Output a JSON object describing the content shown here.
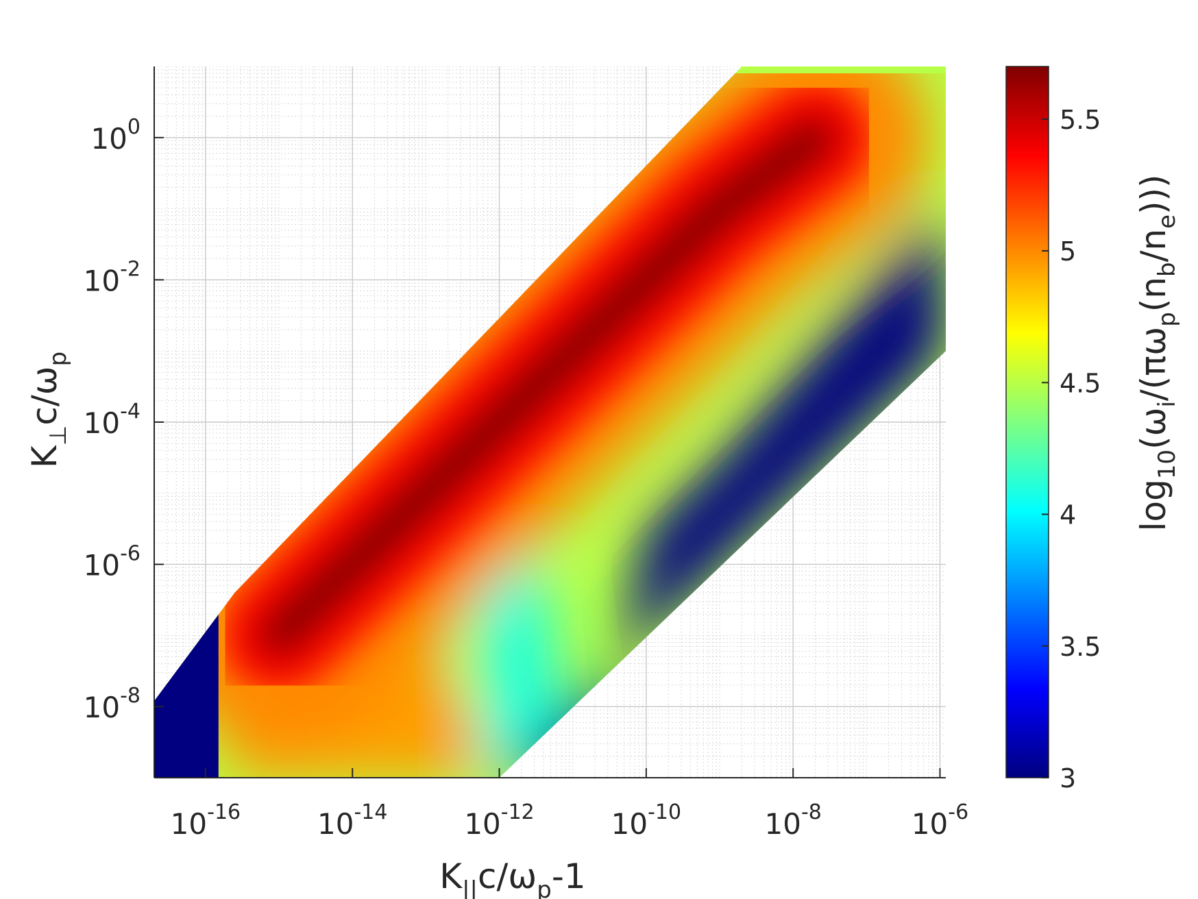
{
  "chart_data": {
    "type": "heatmap",
    "title": "",
    "xlabel": "K",
    "xlabel_sub": "||",
    "xlabel_rest_1": "c/ω",
    "xlabel_rest_sub": "p",
    "xlabel_rest_2": "-1",
    "ylabel": "K",
    "ylabel_sub": "⊥",
    "ylabel_rest_1": "c/ω",
    "ylabel_rest_sub": "p",
    "colorbar_label": {
      "a": "log",
      "a_sub": "10",
      "b": "(ω",
      "b_sub": "i",
      "c": "/(πω",
      "c_sub": "p",
      "d": "(n",
      "d_sub": "b",
      "e": "/n",
      "e_sub": "e",
      "f": ")))"
    },
    "x_scale": "log",
    "y_scale": "log",
    "xlim": [
      2e-17,
      1.2e-06
    ],
    "ylim": [
      1e-09,
      10
    ],
    "x_ticks": [
      {
        "value": 1e-16,
        "base": "10",
        "exp": "-16"
      },
      {
        "value": 1e-14,
        "base": "10",
        "exp": "-14"
      },
      {
        "value": 1e-12,
        "base": "10",
        "exp": "-12"
      },
      {
        "value": 1e-10,
        "base": "10",
        "exp": "-10"
      },
      {
        "value": 1e-08,
        "base": "10",
        "exp": "-8"
      },
      {
        "value": 1e-06,
        "base": "10",
        "exp": "-6"
      }
    ],
    "y_ticks": [
      {
        "value": 1e-08,
        "base": "10",
        "exp": "-8"
      },
      {
        "value": 1e-06,
        "base": "10",
        "exp": "-6"
      },
      {
        "value": 0.0001,
        "base": "10",
        "exp": "-4"
      },
      {
        "value": 0.01,
        "base": "10",
        "exp": "-2"
      },
      {
        "value": 1,
        "base": "10",
        "exp": "0"
      }
    ],
    "grid": true,
    "colormap": "jet",
    "colorbar_range": [
      3,
      5.7
    ],
    "colorbar_ticks": [
      "3",
      "3.5",
      "4",
      "4.5",
      "5",
      "5.5"
    ],
    "colorbar_tick_values": [
      3,
      3.5,
      4,
      4.5,
      5,
      5.5
    ],
    "colorbar_colors": [
      "#00008f",
      "#0000ff",
      "#0080ff",
      "#00ffff",
      "#80ff80",
      "#ffff00",
      "#ff8000",
      "#ff0000",
      "#800000"
    ],
    "data_region_boundary": [
      [
        2e-17,
        1.2e-08
      ],
      [
        2.5e-16,
        4e-07
      ],
      [
        2e-09,
        10
      ],
      [
        1.2e-06,
        10
      ],
      [
        1.2e-06,
        0.001
      ],
      [
        1e-12,
        1e-09
      ],
      [
        2e-17,
        1e-09
      ]
    ],
    "ridge_max_path": [
      [
        1e-15,
        1e-07
      ],
      [
        1e-13,
        1e-05
      ],
      [
        1e-11,
        0.001
      ],
      [
        1e-09,
        0.1
      ],
      [
        2e-08,
        1
      ]
    ],
    "features": [
      {
        "region": "left edge (x below 1e-16)",
        "value": 3
      },
      {
        "region": "lower-right band",
        "value": 3
      },
      {
        "region": "bottom low-k_perp band, x from 1e-15 to 1e-12",
        "value_range": [
          4.2,
          5.1
        ]
      },
      {
        "region": "diagonal ridge",
        "value": 5.7
      }
    ]
  }
}
